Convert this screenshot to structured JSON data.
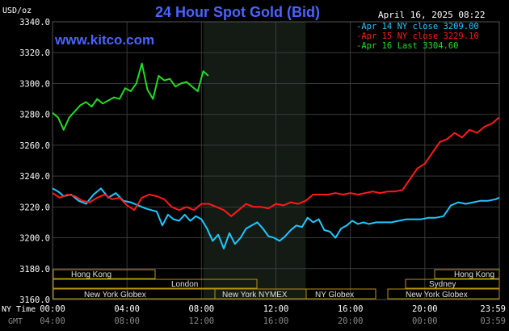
{
  "header": {
    "title": "24 Hour Spot Gold (Bid)",
    "units": "USD/oz",
    "date": "April 16, 2025 08:22",
    "website": "www.kitco.com"
  },
  "colors": {
    "background": "#000000",
    "grid": "#3a3a3a",
    "title": "#4a64ff",
    "website": "#4a64ff",
    "axis_text": "#ffffff",
    "gmt_text": "#8a8a8a",
    "ny_session_shade": "#141a14",
    "series_apr14": "#1ec8ff",
    "series_apr15": "#ff1a1a",
    "series_apr16": "#22dd22",
    "session_bar": "#b8960c"
  },
  "axis_labels": {
    "ny_time": "NY Time",
    "gmt": "GMT"
  },
  "sessions": {
    "row1": [
      "Hong Kong",
      "Hong Kong"
    ],
    "row2": [
      "London",
      "Sydney"
    ],
    "row3": [
      "New York Globex",
      "New York NYMEX",
      "NY Globex",
      "New York Globex"
    ]
  },
  "chart_data": {
    "type": "line",
    "ylim": [
      3160,
      3340
    ],
    "yticks": [
      "3160.0",
      "3180.0",
      "3200.0",
      "3220.0",
      "3240.0",
      "3260.0",
      "3280.0",
      "3300.0",
      "3320.0",
      "3340.0"
    ],
    "xlim": [
      0,
      24
    ],
    "xticks_ny": [
      "00:00",
      "04:00",
      "08:00",
      "12:00",
      "16:00",
      "20:00",
      "23:59"
    ],
    "xticks_gmt": [
      "04:00",
      "08:00",
      "12:00",
      "16:00",
      "20:00",
      "00:00",
      "03:59"
    ],
    "grid": true,
    "legend_position": "top-right",
    "legend": [
      {
        "label": "Apr 14 NY close 3209.00",
        "color": "#1ec8ff"
      },
      {
        "label": "Apr 15 NY close 3229.10",
        "color": "#ff1a1a"
      },
      {
        "label": "Apr 16 Last 3304.60",
        "color": "#22dd22"
      }
    ],
    "series": [
      {
        "name": "Apr 14 NY close 3209.00",
        "color": "#1ec8ff",
        "x": [
          0,
          0.3,
          0.6,
          1,
          1.4,
          1.8,
          2.2,
          2.6,
          3,
          3.4,
          3.8,
          4.2,
          4.6,
          5,
          5.3,
          5.6,
          5.9,
          6.2,
          6.5,
          6.8,
          7.1,
          7.4,
          7.7,
          8,
          8.3,
          8.6,
          8.9,
          9.2,
          9.5,
          9.8,
          10.1,
          10.4,
          10.7,
          11,
          11.3,
          11.6,
          11.9,
          12.2,
          12.5,
          12.8,
          13.1,
          13.4,
          13.7,
          14,
          14.3,
          14.6,
          14.9,
          15.2,
          15.5,
          15.8,
          16.1,
          16.4,
          16.7,
          17,
          17.4,
          17.8,
          18.2,
          18.6,
          19,
          19.4,
          19.8,
          20.2,
          20.6,
          21,
          21.4,
          21.8,
          22.2,
          22.6,
          23,
          23.4,
          23.8,
          23.99
        ],
        "y": [
          3232,
          3230,
          3227,
          3228,
          3224,
          3222,
          3228,
          3232,
          3226,
          3229,
          3224,
          3223,
          3221,
          3219,
          3218,
          3217,
          3208,
          3215,
          3212,
          3211,
          3215,
          3211,
          3214,
          3212,
          3206,
          3198,
          3202,
          3193,
          3203,
          3196,
          3200,
          3206,
          3208,
          3210,
          3206,
          3201,
          3200,
          3198,
          3201,
          3205,
          3208,
          3207,
          3213,
          3210,
          3212,
          3205,
          3204,
          3200,
          3206,
          3208,
          3211,
          3209,
          3210,
          3209,
          3210,
          3210,
          3210,
          3211,
          3212,
          3212,
          3212,
          3213,
          3213,
          3214,
          3221,
          3223,
          3222,
          3223,
          3224,
          3224,
          3225,
          3226
        ]
      },
      {
        "name": "Apr 15 NY close 3229.10",
        "color": "#ff1a1a",
        "x": [
          0,
          0.4,
          0.8,
          1.2,
          1.6,
          2,
          2.4,
          2.8,
          3.2,
          3.6,
          4,
          4.4,
          4.8,
          5.2,
          5.6,
          6,
          6.4,
          6.8,
          7.2,
          7.6,
          8,
          8.4,
          8.8,
          9.2,
          9.6,
          10,
          10.4,
          10.8,
          11.2,
          11.6,
          12,
          12.4,
          12.8,
          13.2,
          13.6,
          14,
          14.4,
          14.8,
          15.2,
          15.6,
          16,
          16.4,
          16.8,
          17.2,
          17.6,
          18,
          18.4,
          18.8,
          19.2,
          19.6,
          20,
          20.4,
          20.8,
          21.2,
          21.6,
          22,
          22.4,
          22.8,
          23.2,
          23.6,
          23.99
        ],
        "y": [
          3229,
          3226,
          3228,
          3227,
          3224,
          3223,
          3226,
          3228,
          3225,
          3226,
          3221,
          3218,
          3226,
          3228,
          3227,
          3225,
          3220,
          3218,
          3220,
          3218,
          3222,
          3222,
          3220,
          3218,
          3214,
          3218,
          3222,
          3220,
          3220,
          3219,
          3222,
          3221,
          3223,
          3222,
          3224,
          3228,
          3228,
          3228,
          3229,
          3228,
          3229,
          3228,
          3229,
          3230,
          3229,
          3230,
          3230,
          3231,
          3238,
          3245,
          3248,
          3255,
          3262,
          3264,
          3268,
          3265,
          3270,
          3268,
          3272,
          3274,
          3278
        ]
      },
      {
        "name": "Apr 16 Last 3304.60",
        "color": "#22dd22",
        "x": [
          0,
          0.3,
          0.6,
          0.9,
          1.2,
          1.5,
          1.8,
          2.1,
          2.4,
          2.7,
          3,
          3.3,
          3.6,
          3.9,
          4.2,
          4.5,
          4.8,
          5.1,
          5.4,
          5.7,
          6,
          6.3,
          6.6,
          6.9,
          7.2,
          7.5,
          7.8,
          8.1,
          8.37
        ],
        "y": [
          3281,
          3278,
          3270,
          3278,
          3282,
          3286,
          3288,
          3285,
          3290,
          3287,
          3289,
          3291,
          3290,
          3297,
          3295,
          3300,
          3313,
          3296,
          3290,
          3305,
          3302,
          3303,
          3298,
          3300,
          3301,
          3298,
          3295,
          3308,
          3305
        ]
      }
    ]
  }
}
